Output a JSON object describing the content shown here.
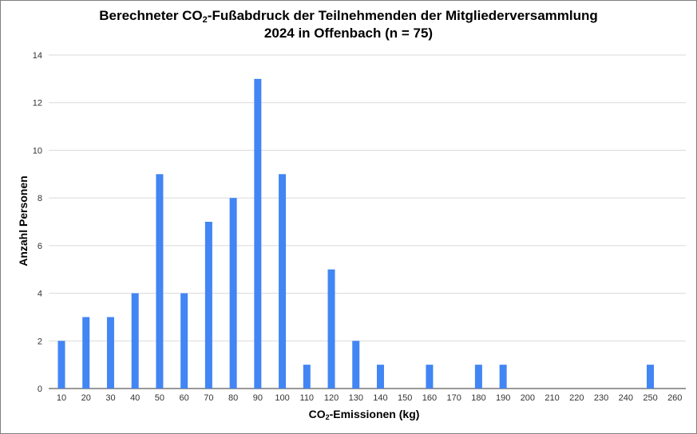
{
  "chart_data": {
    "type": "bar",
    "title": {
      "line1_pre": "Berechneter CO",
      "line1_sub": "2",
      "line1_post": "-Fußabdruck der Teilnehmenden der Mitgliederversammlung",
      "line2": "2024 in Offenbach (n = 75)"
    },
    "xlabel": {
      "pre": "CO",
      "sub": "2",
      "post": "-Emissionen (kg)"
    },
    "ylabel": "Anzahl Personen",
    "categories": [
      "10",
      "20",
      "30",
      "40",
      "50",
      "60",
      "70",
      "80",
      "90",
      "100",
      "110",
      "120",
      "130",
      "140",
      "150",
      "160",
      "170",
      "180",
      "190",
      "200",
      "210",
      "220",
      "230",
      "240",
      "250",
      "260"
    ],
    "values": [
      2,
      3,
      3,
      4,
      9,
      4,
      7,
      8,
      13,
      9,
      1,
      5,
      2,
      1,
      0,
      1,
      0,
      1,
      1,
      0,
      0,
      0,
      0,
      0,
      1,
      0
    ],
    "ylim": [
      0,
      14
    ],
    "yticks": [
      0,
      2,
      4,
      6,
      8,
      10,
      12,
      14
    ],
    "grid": true,
    "bar_color": "#4285f4",
    "grid_color": "#d9d9d9"
  }
}
